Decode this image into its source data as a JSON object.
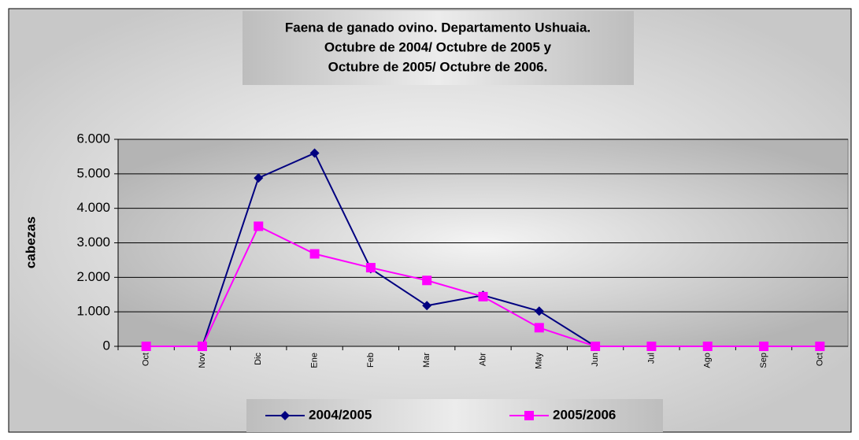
{
  "chart_data": {
    "type": "line",
    "title": [
      "Faena de ganado ovino. Departamento Ushuaia.",
      "Octubre de 2004/ Octubre de 2005 y",
      "Octubre de 2005/ Octubre de 2006."
    ],
    "y_label": "cabezas",
    "categories": [
      "Oct",
      "Nov",
      "Dic",
      "Ene",
      "Feb",
      "Mar",
      "Abr",
      "May",
      "Jun",
      "Jul",
      "Ago",
      "Sep",
      "Oct"
    ],
    "series": [
      {
        "name": "2004/2005",
        "color": "#000080",
        "marker": "diamond",
        "values": [
          0,
          0,
          4880,
          5600,
          2250,
          1180,
          1480,
          1020,
          0,
          0,
          0,
          0,
          0
        ]
      },
      {
        "name": "2005/2006",
        "color": "#ff00ff",
        "marker": "square",
        "values": [
          0,
          0,
          3480,
          2680,
          2280,
          1910,
          1440,
          540,
          0,
          0,
          0,
          0,
          0
        ]
      }
    ],
    "ylim": [
      0,
      6000
    ],
    "yticks": [
      0,
      {
        "value": 1000,
        "label": "1.000"
      },
      {
        "value": 2000,
        "label": "2.000"
      },
      {
        "value": 3000,
        "label": "3.000"
      },
      {
        "value": 4000,
        "label": "4.000"
      },
      {
        "value": 5000,
        "label": "5.000"
      },
      {
        "value": 6000,
        "label": "6.000"
      }
    ],
    "grid": true,
    "legend": "bottom"
  }
}
